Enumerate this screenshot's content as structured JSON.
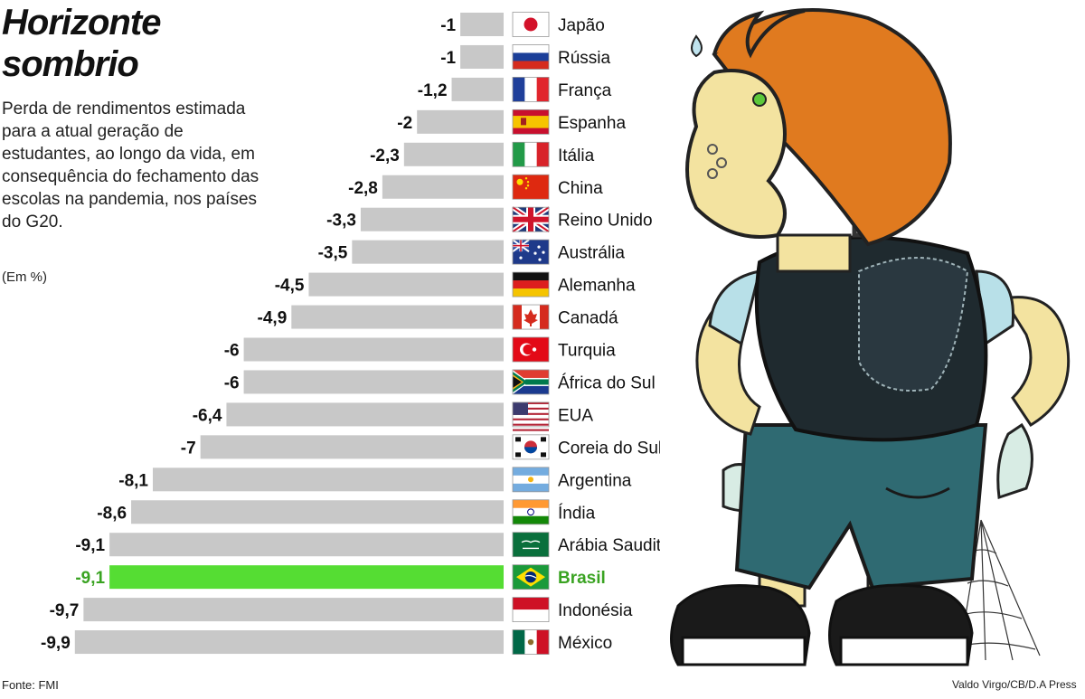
{
  "header": {
    "title_line1": "Horizonte",
    "title_line2": "sombrio",
    "subtitle": "Perda de rendimentos estimada para a atual geração de estudantes, ao longo da vida, em consequência do fechamento das escolas na pandemia, nos países do G20.",
    "unit": "(Em %)"
  },
  "footer": {
    "source": "Fonte: FMI",
    "credit": "Valdo Virgo/CB/D.A Press"
  },
  "colors": {
    "bar": "#c8c8c8",
    "highlight": "#55dd33",
    "highlight_text": "#3aa322",
    "text": "#111111"
  },
  "chart_data": {
    "type": "bar",
    "orientation": "horizontal",
    "xlabel": "",
    "ylabel": "",
    "xlim": [
      -10,
      0
    ],
    "grid": false,
    "legend": "none",
    "categories": [
      "Japão",
      "Rússia",
      "França",
      "Espanha",
      "Itália",
      "China",
      "Reino Unido",
      "Austrália",
      "Alemanha",
      "Canadá",
      "Turquia",
      "África do Sul",
      "EUA",
      "Coreia do Sul",
      "Argentina",
      "Índia",
      "Arábia Saudita",
      "Brasil",
      "Indonésia",
      "México"
    ],
    "values": [
      -1,
      -1,
      -1.2,
      -2,
      -2.3,
      -2.8,
      -3.3,
      -3.5,
      -4.5,
      -4.9,
      -6,
      -6,
      -6.4,
      -7,
      -8.1,
      -8.6,
      -9.1,
      -9.1,
      -9.7,
      -9.9
    ],
    "value_labels": [
      "-1",
      "-1",
      "-1,2",
      "-2",
      "-2,3",
      "-2,8",
      "-3,3",
      "-3,5",
      "-4,5",
      "-4,9",
      "-6",
      "-6",
      "-6,4",
      "-7",
      "-8,1",
      "-8,6",
      "-9,1",
      "-9,1",
      "-9,7",
      "-9,9"
    ],
    "flags": [
      "japan-flag-icon",
      "russia-flag-icon",
      "france-flag-icon",
      "spain-flag-icon",
      "italy-flag-icon",
      "china-flag-icon",
      "uk-flag-icon",
      "australia-flag-icon",
      "germany-flag-icon",
      "canada-flag-icon",
      "turkey-flag-icon",
      "south-africa-flag-icon",
      "usa-flag-icon",
      "south-korea-flag-icon",
      "argentina-flag-icon",
      "india-flag-icon",
      "saudi-arabia-flag-icon",
      "brazil-flag-icon",
      "indonesia-flag-icon",
      "mexico-flag-icon"
    ],
    "highlighted_category": "Brasil"
  }
}
